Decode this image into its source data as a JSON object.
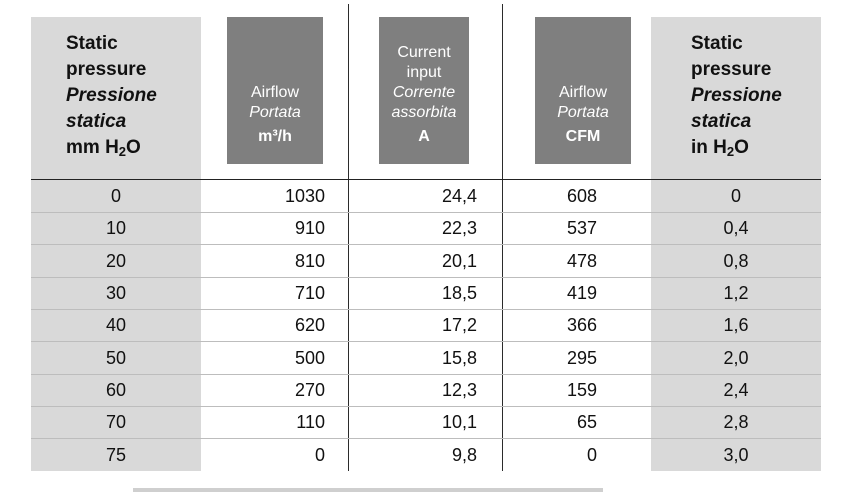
{
  "headers": {
    "static_mm": {
      "en1": "Static",
      "en2": "pressure",
      "it1": "Pressione",
      "it2": "statica",
      "unit_pre": "mm H",
      "unit_sub": "2",
      "unit_post": "O"
    },
    "airflow_m3h": {
      "en": "Airflow",
      "it": "Portata",
      "unit": "m³/h"
    },
    "current": {
      "en1": "Current",
      "en2": "input",
      "it1": "Corrente",
      "it2": "assorbita",
      "unit": "A"
    },
    "airflow_cfm": {
      "en": "Airflow",
      "it": "Portata",
      "unit": "CFM"
    },
    "static_in": {
      "en1": "Static",
      "en2": "pressure",
      "it1": "Pressione",
      "it2": "statica",
      "unit_pre": "in H",
      "unit_sub": "2",
      "unit_post": "O"
    }
  },
  "rows": [
    {
      "static_mm": "0",
      "airflow_m3h": "1030",
      "current": "24,4",
      "airflow_cfm": "608",
      "static_in": "0"
    },
    {
      "static_mm": "10",
      "airflow_m3h": "910",
      "current": "22,3",
      "airflow_cfm": "537",
      "static_in": "0,4"
    },
    {
      "static_mm": "20",
      "airflow_m3h": "810",
      "current": "20,1",
      "airflow_cfm": "478",
      "static_in": "0,8"
    },
    {
      "static_mm": "30",
      "airflow_m3h": "710",
      "current": "18,5",
      "airflow_cfm": "419",
      "static_in": "1,2"
    },
    {
      "static_mm": "40",
      "airflow_m3h": "620",
      "current": "17,2",
      "airflow_cfm": "366",
      "static_in": "1,6"
    },
    {
      "static_mm": "50",
      "airflow_m3h": "500",
      "current": "15,8",
      "airflow_cfm": "295",
      "static_in": "2,0"
    },
    {
      "static_mm": "60",
      "airflow_m3h": "270",
      "current": "12,3",
      "airflow_cfm": "159",
      "static_in": "2,4"
    },
    {
      "static_mm": "70",
      "airflow_m3h": "110",
      "current": "10,1",
      "airflow_cfm": "65",
      "static_in": "2,8"
    },
    {
      "static_mm": "75",
      "airflow_m3h": "0",
      "current": "9,8",
      "airflow_cfm": "0",
      "static_in": "3,0"
    }
  ],
  "colors": {
    "band": "#d9d9d9",
    "header_box": "#7f7f7f"
  }
}
